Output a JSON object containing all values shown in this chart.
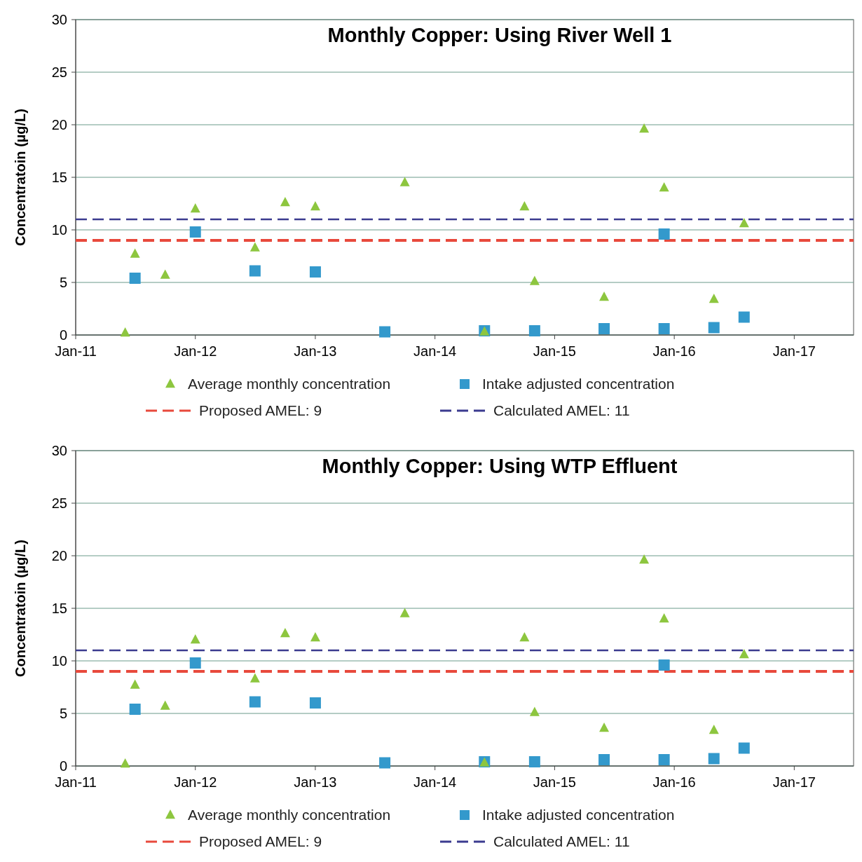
{
  "chart_data": [
    {
      "type": "scatter",
      "title": "Monthly Copper: Using River Well 1",
      "ylabel": "Concentratoin (µg/L)",
      "xlim": [
        "2011-01",
        "2017-07"
      ],
      "xticks": [
        {
          "value": "2011-01",
          "label": "Jan-11"
        },
        {
          "value": "2012-01",
          "label": "Jan-12"
        },
        {
          "value": "2013-01",
          "label": "Jan-13"
        },
        {
          "value": "2014-01",
          "label": "Jan-14"
        },
        {
          "value": "2015-01",
          "label": "Jan-15"
        },
        {
          "value": "2016-01",
          "label": "Jan-16"
        },
        {
          "value": "2017-01",
          "label": "Jan-17"
        }
      ],
      "ylim": [
        0,
        30
      ],
      "yticks": [
        0,
        5,
        10,
        15,
        20,
        25,
        30
      ],
      "grid": "y",
      "legend": "bottom",
      "series": [
        {
          "name": "Average monthly concentration",
          "marker": "triangle",
          "color": "#8dc63f",
          "x": [
            "2011-06",
            "2011-07",
            "2011-10",
            "2012-01",
            "2012-07",
            "2012-10",
            "2013-01",
            "2013-10",
            "2014-06",
            "2014-10",
            "2014-11",
            "2015-06",
            "2015-10",
            "2015-12",
            "2016-05",
            "2016-08"
          ],
          "values": [
            0.2,
            7.7,
            5.7,
            12,
            8.3,
            12.6,
            12.2,
            14.5,
            0.3,
            12.2,
            5.1,
            3.6,
            19.6,
            14,
            3.4,
            10.6
          ]
        },
        {
          "name": "Intake adjusted concentration",
          "marker": "square",
          "color": "#3399cc",
          "x": [
            "2011-07",
            "2012-01",
            "2012-07",
            "2013-01",
            "2013-08",
            "2014-06",
            "2014-11",
            "2015-06",
            "2015-12",
            "2015-12",
            "2016-05",
            "2016-08"
          ],
          "values": [
            5.4,
            9.8,
            6.1,
            6,
            0.3,
            0.4,
            0.4,
            0.6,
            9.6,
            0.6,
            0.7,
            1.7
          ]
        },
        {
          "name": "Proposed AMEL: 9",
          "type": "line",
          "marker": "none",
          "line_style": "dashed",
          "color": "#e8493c",
          "x": [
            "2011-01",
            "2017-07"
          ],
          "values": [
            9,
            9
          ]
        },
        {
          "name": "Calculated AMEL: 11",
          "type": "line",
          "marker": "none",
          "line_style": "dashed",
          "color": "#3b3b8f",
          "x": [
            "2011-01",
            "2017-07"
          ],
          "values": [
            11,
            11
          ]
        }
      ]
    },
    {
      "type": "scatter",
      "title": "Monthly Copper: Using WTP Effluent",
      "ylabel": "Concentratoin (µg/L)",
      "xlim": [
        "2011-01",
        "2017-07"
      ],
      "xticks": [
        {
          "value": "2011-01",
          "label": "Jan-11"
        },
        {
          "value": "2012-01",
          "label": "Jan-12"
        },
        {
          "value": "2013-01",
          "label": "Jan-13"
        },
        {
          "value": "2014-01",
          "label": "Jan-14"
        },
        {
          "value": "2015-01",
          "label": "Jan-15"
        },
        {
          "value": "2016-01",
          "label": "Jan-16"
        },
        {
          "value": "2017-01",
          "label": "Jan-17"
        }
      ],
      "ylim": [
        0,
        30
      ],
      "yticks": [
        0,
        5,
        10,
        15,
        20,
        25,
        30
      ],
      "grid": "y",
      "legend": "bottom",
      "series": [
        {
          "name": "Average monthly concentration",
          "marker": "triangle",
          "color": "#8dc63f",
          "x": [
            "2011-06",
            "2011-07",
            "2011-10",
            "2012-01",
            "2012-07",
            "2012-10",
            "2013-01",
            "2013-10",
            "2014-06",
            "2014-10",
            "2014-11",
            "2015-06",
            "2015-10",
            "2015-12",
            "2016-05",
            "2016-08"
          ],
          "values": [
            0.2,
            7.7,
            5.7,
            12,
            8.3,
            12.6,
            12.2,
            14.5,
            0.3,
            12.2,
            5.1,
            3.6,
            19.6,
            14,
            3.4,
            10.6
          ]
        },
        {
          "name": "Intake adjusted concentration",
          "marker": "square",
          "color": "#3399cc",
          "x": [
            "2011-07",
            "2012-01",
            "2012-07",
            "2013-01",
            "2013-08",
            "2014-06",
            "2014-11",
            "2015-06",
            "2015-12",
            "2015-12",
            "2016-05",
            "2016-08"
          ],
          "values": [
            5.4,
            9.8,
            6.1,
            6,
            0.3,
            0.4,
            0.4,
            0.6,
            9.6,
            0.6,
            0.7,
            1.7
          ]
        },
        {
          "name": "Proposed AMEL: 9",
          "type": "line",
          "marker": "none",
          "line_style": "dashed",
          "color": "#e8493c",
          "x": [
            "2011-01",
            "2017-07"
          ],
          "values": [
            9,
            9
          ]
        },
        {
          "name": "Calculated AMEL: 11",
          "type": "line",
          "marker": "none",
          "line_style": "dashed",
          "color": "#3b3b8f",
          "x": [
            "2011-01",
            "2017-07"
          ],
          "values": [
            11,
            11
          ]
        }
      ]
    }
  ]
}
